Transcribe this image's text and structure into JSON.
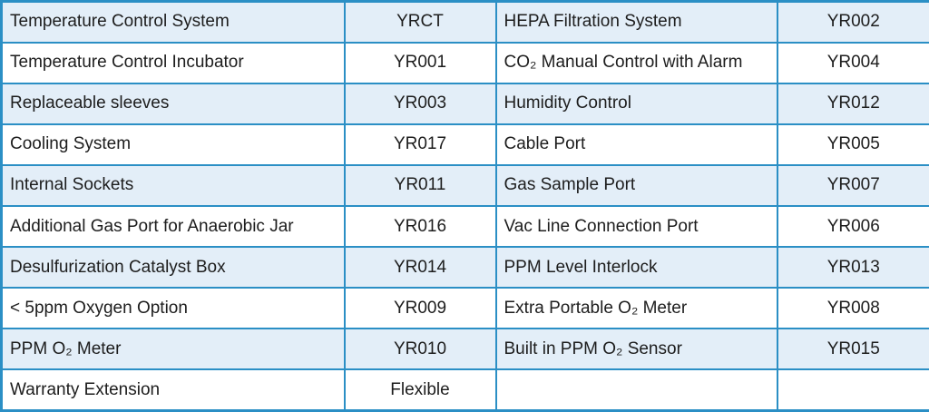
{
  "table": {
    "border_color": "#2b8fc5",
    "alt_row_color": "#e3eef8",
    "base_row_color": "#ffffff",
    "text_color": "#1d1d1d",
    "rows": [
      {
        "feature_left": "Temperature Control System",
        "code_left": "YRCT",
        "feature_right": "HEPA Filtration System",
        "code_right": "YR002"
      },
      {
        "feature_left": "Temperature Control Incubator",
        "code_left": "YR001",
        "feature_right": "CO₂ Manual Control with Alarm",
        "code_right": "YR004"
      },
      {
        "feature_left": "Replaceable sleeves",
        "code_left": "YR003",
        "feature_right": "Humidity Control",
        "code_right": "YR012"
      },
      {
        "feature_left": "Cooling System",
        "code_left": "YR017",
        "feature_right": "Cable Port",
        "code_right": "YR005"
      },
      {
        "feature_left": "Internal Sockets",
        "code_left": "YR011",
        "feature_right": "Gas Sample Port",
        "code_right": "YR007"
      },
      {
        "feature_left": "Additional Gas Port for Anaerobic Jar",
        "code_left": "YR016",
        "feature_right": "Vac Line Connection Port",
        "code_right": "YR006"
      },
      {
        "feature_left": "Desulfurization Catalyst Box",
        "code_left": "YR014",
        "feature_right": "PPM Level Interlock",
        "code_right": "YR013"
      },
      {
        "feature_left": "< 5ppm Oxygen Option",
        "code_left": "YR009",
        "feature_right": "Extra Portable O₂ Meter",
        "code_right": "YR008"
      },
      {
        "feature_left": "PPM O₂ Meter",
        "code_left": "YR010",
        "feature_right": "Built in PPM O₂ Sensor",
        "code_right": "YR015"
      },
      {
        "feature_left": "Warranty Extension",
        "code_left": "Flexible",
        "feature_right": "",
        "code_right": ""
      }
    ]
  }
}
